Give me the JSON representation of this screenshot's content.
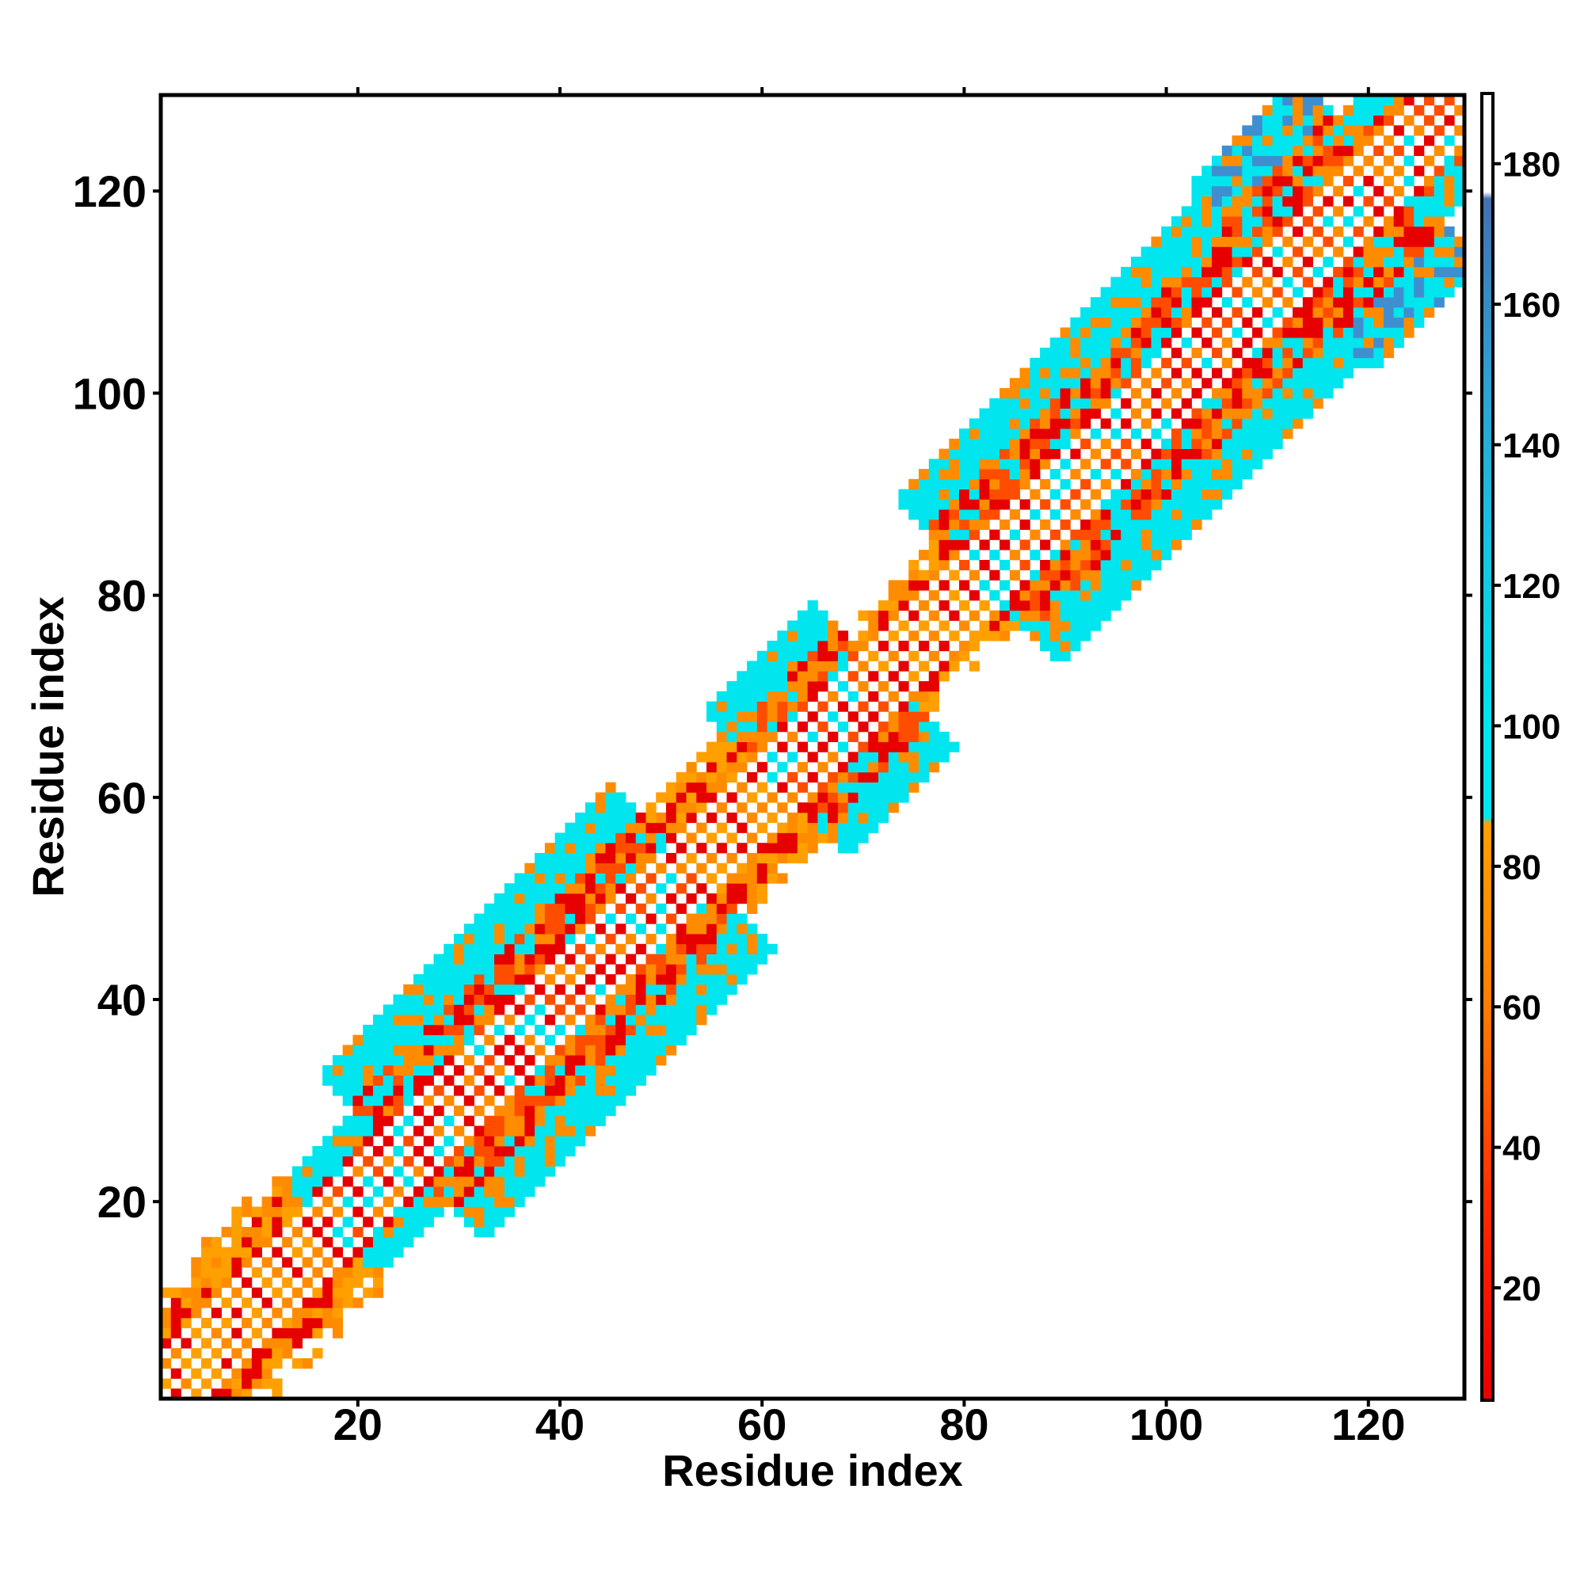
{
  "chart_data": {
    "type": "heatmap",
    "title": "",
    "xlabel": "Residue index",
    "ylabel": "Residue index",
    "x_range": [
      1,
      129
    ],
    "y_range": [
      1,
      129
    ],
    "x_ticks": [
      20,
      40,
      60,
      80,
      100,
      120
    ],
    "y_ticks": [
      20,
      40,
      60,
      80,
      100,
      120
    ],
    "grid": false,
    "colorbar": {
      "range": [
        4,
        190
      ],
      "ticks": [
        20,
        40,
        60,
        80,
        100,
        120,
        140,
        160,
        180
      ],
      "stops": [
        {
          "value": 4,
          "color": "#e60000"
        },
        {
          "value": 32,
          "color": "#ff2a00"
        },
        {
          "value": 48,
          "color": "#ff5c00"
        },
        {
          "value": 62,
          "color": "#ff8000"
        },
        {
          "value": 86,
          "color": "#ff9f00"
        },
        {
          "value": 87,
          "color": "#00e5ee"
        },
        {
          "value": 100,
          "color": "#00e5ee"
        },
        {
          "value": 130,
          "color": "#1bbde0"
        },
        {
          "value": 150,
          "color": "#2e9fd0"
        },
        {
          "value": 175,
          "color": "#4470b0"
        },
        {
          "value": 176,
          "color": "#ffffff"
        },
        {
          "value": 190,
          "color": "#ffffff"
        }
      ]
    },
    "segments": [
      {
        "start": 1,
        "end": 17,
        "halfwidth": 5.5,
        "pattern": "red-orange"
      },
      {
        "start": 18,
        "end": 24,
        "halfwidth": 4.5,
        "pattern": "red-orange-cyan"
      },
      {
        "start": 25,
        "end": 53,
        "halfwidth": 8,
        "pattern": "red-orange-cyan"
      },
      {
        "start": 54,
        "end": 61,
        "halfwidth": 5,
        "pattern": "red-orange"
      },
      {
        "start": 62,
        "end": 72,
        "halfwidth": 7,
        "pattern": "red-orange-cyan"
      },
      {
        "start": 73,
        "end": 81,
        "halfwidth": 4,
        "pattern": "red-orange"
      },
      {
        "start": 82,
        "end": 111,
        "halfwidth": 8,
        "pattern": "red-orange-cyan"
      },
      {
        "start": 112,
        "end": 122,
        "halfwidth": 9,
        "pattern": "red-orange-blue"
      },
      {
        "start": 123,
        "end": 129,
        "halfwidth": 5,
        "pattern": "red-orange-cyan"
      }
    ]
  }
}
